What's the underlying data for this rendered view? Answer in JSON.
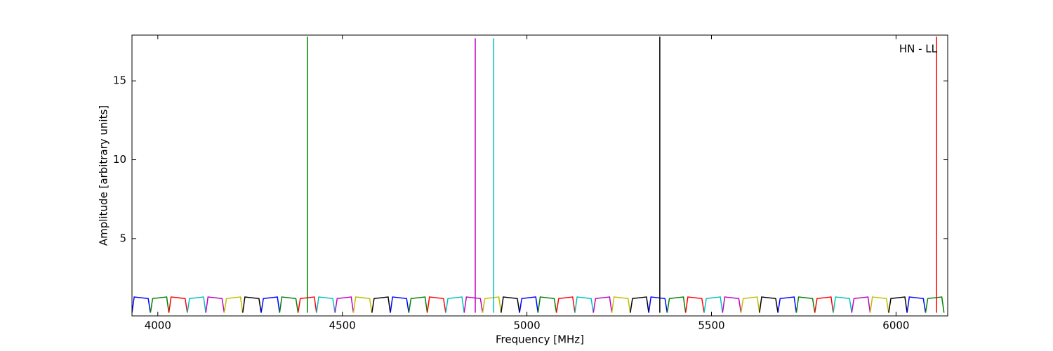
{
  "chart_data": {
    "type": "line",
    "annotation": "HN - LL",
    "xlabel": "Frequency [MHz]",
    "ylabel": "Amplitude [arbitrary units]",
    "xlim": [
      3930,
      6140
    ],
    "ylim": [
      0.1,
      17.9
    ],
    "xticks": [
      4000,
      4500,
      5000,
      5500,
      6000
    ],
    "yticks": [
      5,
      10,
      15
    ],
    "series": [
      {
        "color": "#0000ff",
        "x": [
          3930,
          3936,
          3974,
          3980
        ],
        "values": [
          0.3,
          1.3,
          1.2,
          0.3
        ]
      },
      {
        "color": "#008000",
        "x": [
          3980,
          3986,
          4024,
          4030
        ],
        "values": [
          0.3,
          1.2,
          1.3,
          0.3
        ]
      },
      {
        "color": "#ff0000",
        "x": [
          4030,
          4036,
          4074,
          4080
        ],
        "values": [
          0.3,
          1.3,
          1.2,
          0.3
        ]
      },
      {
        "color": "#00bfbf",
        "x": [
          4080,
          4086,
          4124,
          4130
        ],
        "values": [
          0.3,
          1.2,
          1.3,
          0.3
        ]
      },
      {
        "color": "#bf00bf",
        "x": [
          4130,
          4136,
          4174,
          4180
        ],
        "values": [
          0.3,
          1.3,
          1.2,
          0.3
        ]
      },
      {
        "color": "#bfbf00",
        "x": [
          4180,
          4186,
          4224,
          4230
        ],
        "values": [
          0.3,
          1.2,
          1.3,
          0.3
        ]
      },
      {
        "color": "#000000",
        "x": [
          4230,
          4236,
          4274,
          4280
        ],
        "values": [
          0.3,
          1.3,
          1.2,
          0.3
        ]
      },
      {
        "color": "#0000ff",
        "x": [
          4280,
          4286,
          4324,
          4330
        ],
        "values": [
          0.3,
          1.2,
          1.3,
          0.3
        ]
      },
      {
        "color": "#008000",
        "x": [
          4330,
          4336,
          4374,
          4380
        ],
        "values": [
          0.3,
          1.3,
          1.2,
          0.3
        ]
      },
      {
        "color": "#ff0000",
        "x": [
          4380,
          4386,
          4424,
          4430
        ],
        "values": [
          0.3,
          1.2,
          1.3,
          0.3
        ]
      },
      {
        "color": "#00bfbf",
        "x": [
          4430,
          4436,
          4474,
          4480
        ],
        "values": [
          0.3,
          1.3,
          1.2,
          0.3
        ]
      },
      {
        "color": "#bf00bf",
        "x": [
          4480,
          4486,
          4524,
          4530
        ],
        "values": [
          0.3,
          1.2,
          1.3,
          0.3
        ]
      },
      {
        "color": "#bfbf00",
        "x": [
          4530,
          4536,
          4574,
          4580
        ],
        "values": [
          0.3,
          1.3,
          1.2,
          0.3
        ]
      },
      {
        "color": "#000000",
        "x": [
          4580,
          4586,
          4624,
          4630
        ],
        "values": [
          0.3,
          1.2,
          1.3,
          0.3
        ]
      },
      {
        "color": "#0000ff",
        "x": [
          4630,
          4636,
          4674,
          4680
        ],
        "values": [
          0.3,
          1.3,
          1.2,
          0.3
        ]
      },
      {
        "color": "#008000",
        "x": [
          4680,
          4686,
          4724,
          4730
        ],
        "values": [
          0.3,
          1.2,
          1.3,
          0.3
        ]
      },
      {
        "color": "#ff0000",
        "x": [
          4730,
          4736,
          4774,
          4780
        ],
        "values": [
          0.3,
          1.3,
          1.2,
          0.3
        ]
      },
      {
        "color": "#00bfbf",
        "x": [
          4780,
          4786,
          4824,
          4830
        ],
        "values": [
          0.3,
          1.2,
          1.3,
          0.3
        ]
      },
      {
        "color": "#bf00bf",
        "x": [
          4830,
          4836,
          4874,
          4880
        ],
        "values": [
          0.3,
          1.3,
          1.2,
          0.3
        ]
      },
      {
        "color": "#bfbf00",
        "x": [
          4880,
          4886,
          4924,
          4930
        ],
        "values": [
          0.3,
          1.2,
          1.3,
          0.3
        ]
      },
      {
        "color": "#000000",
        "x": [
          4930,
          4936,
          4974,
          4980
        ],
        "values": [
          0.3,
          1.3,
          1.2,
          0.3
        ]
      },
      {
        "color": "#0000ff",
        "x": [
          4980,
          4986,
          5024,
          5030
        ],
        "values": [
          0.3,
          1.2,
          1.3,
          0.3
        ]
      },
      {
        "color": "#008000",
        "x": [
          5030,
          5036,
          5074,
          5080
        ],
        "values": [
          0.3,
          1.3,
          1.2,
          0.3
        ]
      },
      {
        "color": "#ff0000",
        "x": [
          5080,
          5086,
          5124,
          5130
        ],
        "values": [
          0.3,
          1.2,
          1.3,
          0.3
        ]
      },
      {
        "color": "#00bfbf",
        "x": [
          5130,
          5136,
          5174,
          5180
        ],
        "values": [
          0.3,
          1.3,
          1.2,
          0.3
        ]
      },
      {
        "color": "#bf00bf",
        "x": [
          5180,
          5186,
          5224,
          5230
        ],
        "values": [
          0.3,
          1.2,
          1.3,
          0.3
        ]
      },
      {
        "color": "#bfbf00",
        "x": [
          5230,
          5236,
          5274,
          5280
        ],
        "values": [
          0.3,
          1.3,
          1.2,
          0.3
        ]
      },
      {
        "color": "#000000",
        "x": [
          5280,
          5286,
          5324,
          5330
        ],
        "values": [
          0.3,
          1.2,
          1.3,
          0.3
        ]
      },
      {
        "color": "#0000ff",
        "x": [
          5330,
          5336,
          5374,
          5380
        ],
        "values": [
          0.3,
          1.3,
          1.2,
          0.3
        ]
      },
      {
        "color": "#008000",
        "x": [
          5380,
          5386,
          5424,
          5430
        ],
        "values": [
          0.3,
          1.2,
          1.3,
          0.3
        ]
      },
      {
        "color": "#ff0000",
        "x": [
          5430,
          5436,
          5474,
          5480
        ],
        "values": [
          0.3,
          1.3,
          1.2,
          0.3
        ]
      },
      {
        "color": "#00bfbf",
        "x": [
          5480,
          5486,
          5524,
          5530
        ],
        "values": [
          0.3,
          1.2,
          1.3,
          0.3
        ]
      },
      {
        "color": "#bf00bf",
        "x": [
          5530,
          5536,
          5574,
          5580
        ],
        "values": [
          0.3,
          1.3,
          1.2,
          0.3
        ]
      },
      {
        "color": "#bfbf00",
        "x": [
          5580,
          5586,
          5624,
          5630
        ],
        "values": [
          0.3,
          1.2,
          1.3,
          0.3
        ]
      },
      {
        "color": "#000000",
        "x": [
          5630,
          5636,
          5674,
          5680
        ],
        "values": [
          0.3,
          1.3,
          1.2,
          0.3
        ]
      },
      {
        "color": "#0000ff",
        "x": [
          5680,
          5686,
          5724,
          5730
        ],
        "values": [
          0.3,
          1.2,
          1.3,
          0.3
        ]
      },
      {
        "color": "#008000",
        "x": [
          5730,
          5736,
          5774,
          5780
        ],
        "values": [
          0.3,
          1.3,
          1.2,
          0.3
        ]
      },
      {
        "color": "#ff0000",
        "x": [
          5780,
          5786,
          5824,
          5830
        ],
        "values": [
          0.3,
          1.2,
          1.3,
          0.3
        ]
      },
      {
        "color": "#00bfbf",
        "x": [
          5830,
          5836,
          5874,
          5880
        ],
        "values": [
          0.3,
          1.3,
          1.2,
          0.3
        ]
      },
      {
        "color": "#bf00bf",
        "x": [
          5880,
          5886,
          5924,
          5930
        ],
        "values": [
          0.3,
          1.2,
          1.3,
          0.3
        ]
      },
      {
        "color": "#bfbf00",
        "x": [
          5930,
          5936,
          5974,
          5980
        ],
        "values": [
          0.3,
          1.3,
          1.2,
          0.3
        ]
      },
      {
        "color": "#000000",
        "x": [
          5980,
          5986,
          6024,
          6030
        ],
        "values": [
          0.3,
          1.2,
          1.3,
          0.3
        ]
      },
      {
        "color": "#0000ff",
        "x": [
          6030,
          6036,
          6074,
          6080
        ],
        "values": [
          0.3,
          1.3,
          1.2,
          0.3
        ]
      },
      {
        "color": "#008000",
        "x": [
          6080,
          6086,
          6124,
          6130
        ],
        "values": [
          0.3,
          1.2,
          1.3,
          0.3
        ]
      },
      {
        "color": "#008000",
        "x": [
          4405,
          4405
        ],
        "values": [
          0.3,
          17.8
        ]
      },
      {
        "color": "#bf00bf",
        "x": [
          4860,
          4860
        ],
        "values": [
          0.3,
          17.7
        ]
      },
      {
        "color": "#00bfbf",
        "x": [
          4910,
          4910
        ],
        "values": [
          0.3,
          17.7
        ]
      },
      {
        "color": "#000000",
        "x": [
          5360,
          5360
        ],
        "values": [
          0.3,
          17.8
        ]
      },
      {
        "color": "#ff0000",
        "x": [
          6110,
          6110
        ],
        "values": [
          0.3,
          17.8
        ]
      }
    ]
  }
}
